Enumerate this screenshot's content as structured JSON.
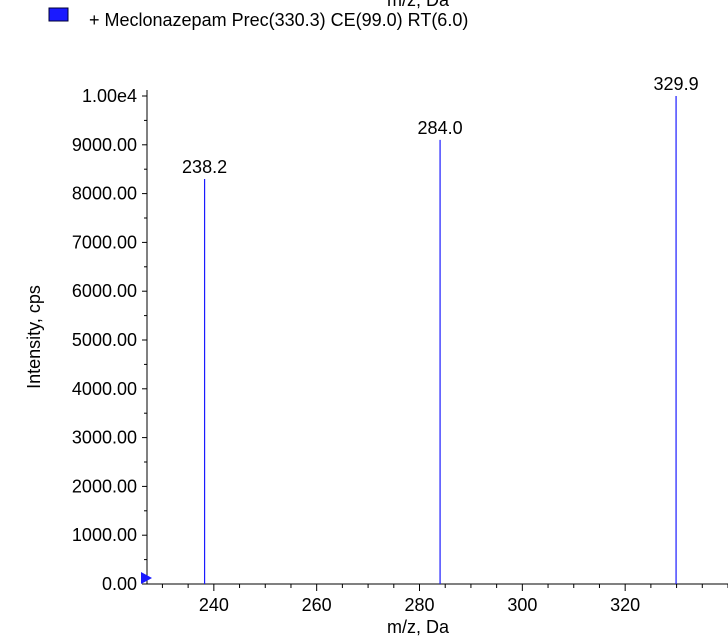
{
  "top_cut_label": "m/z, Da",
  "legend": {
    "text": "+ Meclonazepam Prec(330.3) CE(99.0) RT(6.0)",
    "swatch_color": "#1a1aff"
  },
  "chart_data": {
    "type": "bar",
    "x": [
      238.2,
      284.0,
      329.9
    ],
    "values": [
      8300,
      9100,
      10000
    ],
    "peak_labels": [
      "238.2",
      "284.0",
      "329.9"
    ],
    "series": [
      {
        "values": [
          8300,
          9100,
          10000
        ]
      }
    ],
    "xlabel": "m/z, Da",
    "ylabel": "Intensity, cps",
    "xlim": [
      227,
      340
    ],
    "ylim": [
      0,
      10000
    ],
    "x_ticks": [
      240,
      260,
      280,
      300,
      320
    ],
    "x_tick_labels": [
      "240",
      "260",
      "280",
      "300",
      "320"
    ],
    "y_ticks": [
      0,
      1000,
      2000,
      3000,
      4000,
      5000,
      6000,
      7000,
      8000,
      9000,
      10000
    ],
    "y_tick_labels": [
      "0.00",
      "1000.00",
      "2000.00",
      "3000.00",
      "4000.00",
      "5000.00",
      "6000.00",
      "7000.00",
      "8000.00",
      "9000.00",
      "1.00e4"
    ],
    "grid": false,
    "line_color": "#1a1aff",
    "marker_color": "#1a1aff"
  }
}
